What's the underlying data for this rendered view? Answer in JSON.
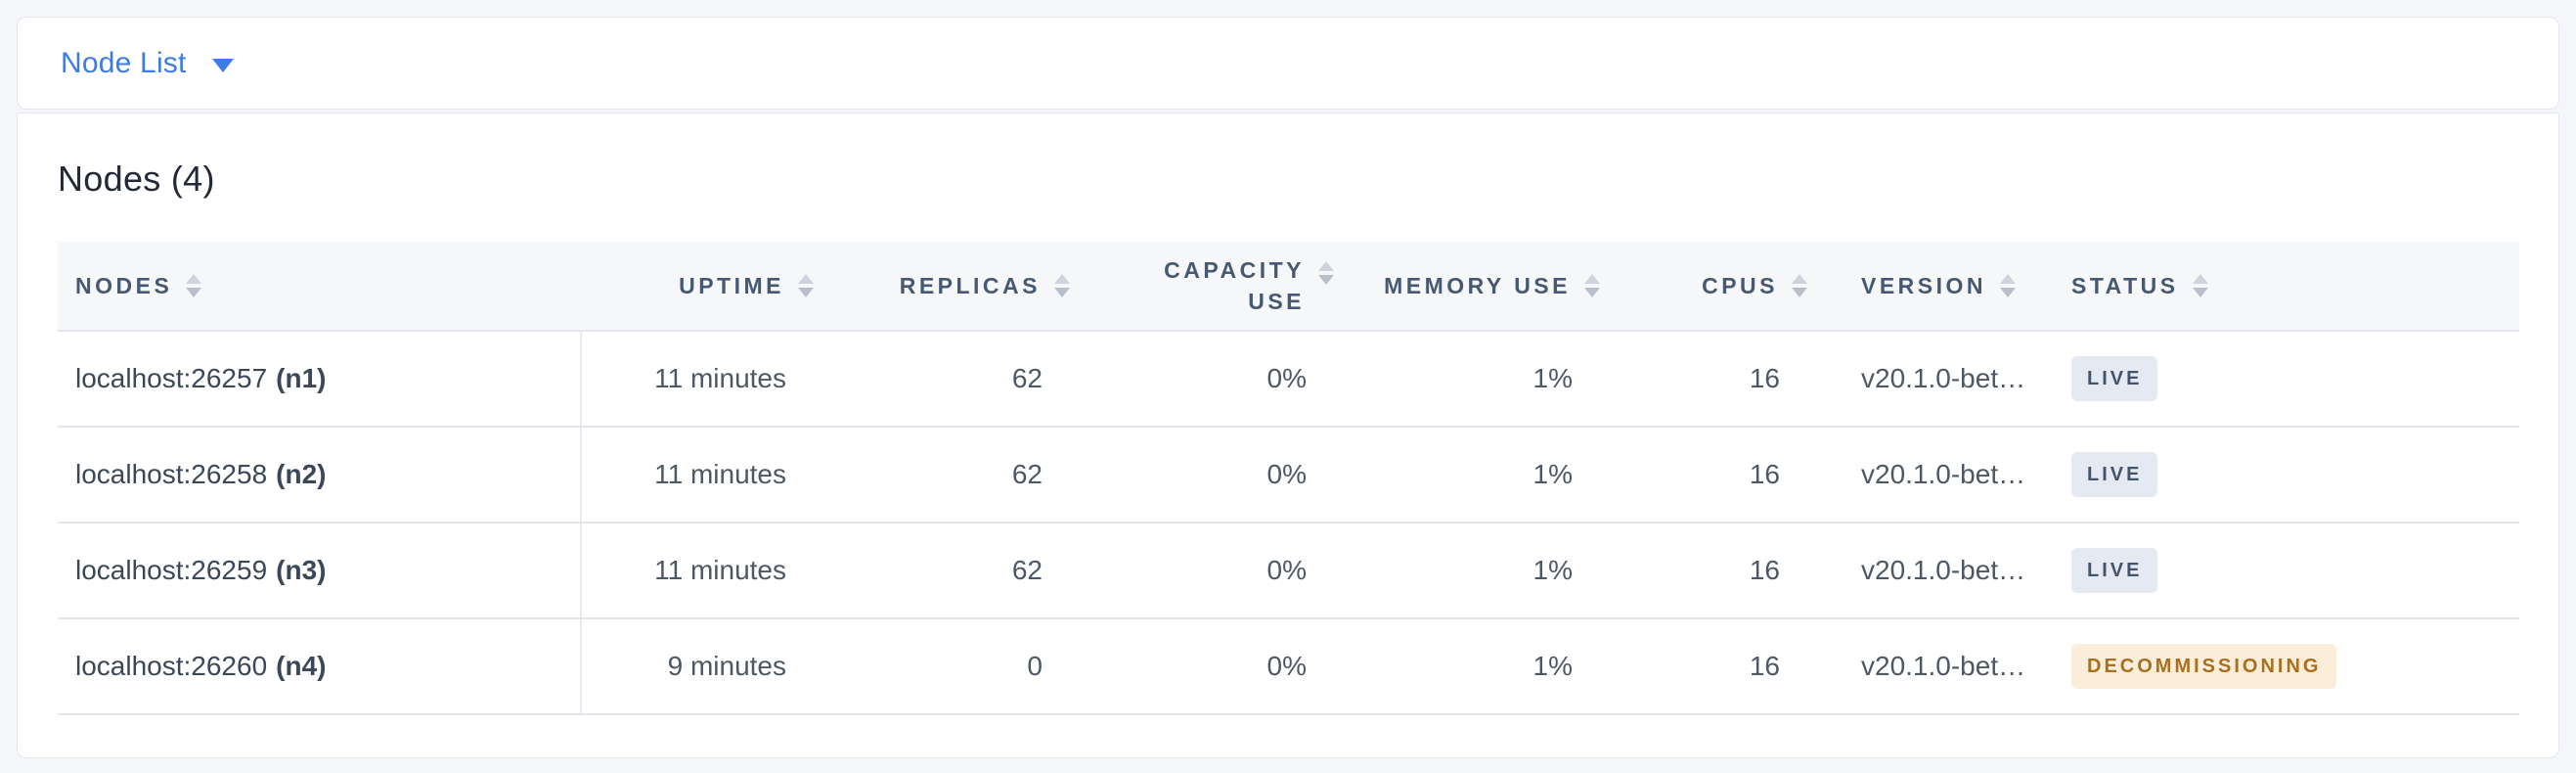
{
  "view_selector": {
    "selected": "Node List"
  },
  "nodes_panel": {
    "title": "Nodes (4)",
    "table": {
      "columns": [
        {
          "key": "nodes",
          "label": "Nodes",
          "align": "left",
          "sortable": true
        },
        {
          "key": "uptime",
          "label": "Uptime",
          "align": "right",
          "sortable": true
        },
        {
          "key": "replicas",
          "label": "Replicas",
          "align": "right",
          "sortable": true
        },
        {
          "key": "capacity_use",
          "label": "Capacity Use",
          "align": "right",
          "sortable": true
        },
        {
          "key": "memory_use",
          "label": "Memory Use",
          "align": "right",
          "sortable": true
        },
        {
          "key": "cpus",
          "label": "CPUs",
          "align": "right",
          "sortable": true
        },
        {
          "key": "version",
          "label": "Version",
          "align": "left",
          "sortable": true
        },
        {
          "key": "status",
          "label": "Status",
          "align": "left",
          "sortable": true
        }
      ],
      "rows": [
        {
          "address": "localhost:26257",
          "node_id": "(n1)",
          "uptime": "11 minutes",
          "replicas": "62",
          "capacity_use": "0%",
          "memory_use": "1%",
          "cpus": "16",
          "version": "v20.1.0-bet…",
          "status": "LIVE",
          "status_type": "live"
        },
        {
          "address": "localhost:26258",
          "node_id": "(n2)",
          "uptime": "11 minutes",
          "replicas": "62",
          "capacity_use": "0%",
          "memory_use": "1%",
          "cpus": "16",
          "version": "v20.1.0-bet…",
          "status": "LIVE",
          "status_type": "live"
        },
        {
          "address": "localhost:26259",
          "node_id": "(n3)",
          "uptime": "11 minutes",
          "replicas": "62",
          "capacity_use": "0%",
          "memory_use": "1%",
          "cpus": "16",
          "version": "v20.1.0-bet…",
          "status": "LIVE",
          "status_type": "live"
        },
        {
          "address": "localhost:26260",
          "node_id": "(n4)",
          "uptime": "9 minutes",
          "replicas": "0",
          "capacity_use": "0%",
          "memory_use": "1%",
          "cpus": "16",
          "version": "v20.1.0-bet…",
          "status": "DECOMMISSIONING",
          "status_type": "decommissioning"
        }
      ]
    }
  },
  "icons": {
    "dropdown_caret": "chevron-down (solid triangle)",
    "sort": "up-down triangle pair"
  },
  "colors": {
    "accent_blue": "#3D7BE5",
    "page_background": "#F4F6FA",
    "card_background": "#FFFFFF",
    "card_border": "#E3E7ED",
    "table_header_background": "#F6F7F9",
    "table_header_text": "#475872",
    "row_divider": "#E2E5EB",
    "cell_text": "#4E5864",
    "node_address_text": "#3C4858",
    "title_text": "#242A35",
    "live_badge_background": "#E4E9F2",
    "live_badge_text": "#44546B",
    "decommissioning_badge_background": "#FAEEDA",
    "decommissioning_badge_text": "#A86F1F"
  }
}
